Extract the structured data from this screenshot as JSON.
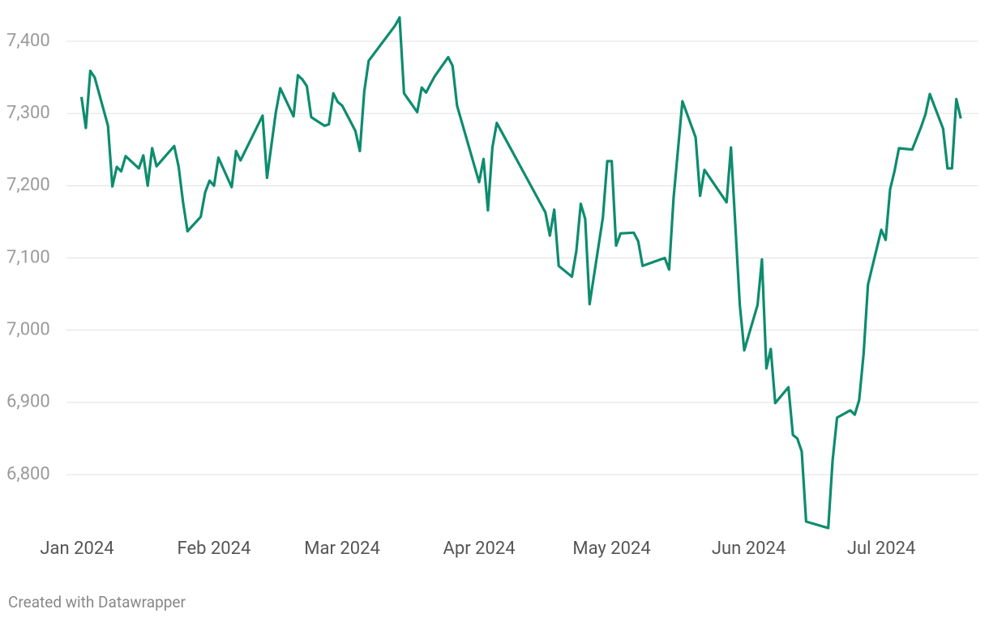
{
  "chart_data": {
    "type": "line",
    "x": [
      1,
      2,
      3,
      4,
      7,
      8,
      9,
      10,
      11,
      14,
      15,
      16,
      17,
      18,
      22,
      23,
      24,
      25,
      28,
      29,
      30,
      31,
      32,
      35,
      36,
      37,
      42,
      43,
      45,
      46,
      49,
      50,
      51,
      52,
      53,
      56,
      57,
      58,
      59,
      60,
      63,
      64,
      65,
      66,
      72,
      73,
      74,
      77,
      78,
      79,
      80,
      81,
      84,
      85,
      86,
      91,
      92,
      93,
      94,
      95,
      106,
      107,
      108,
      109,
      112,
      113,
      114,
      115,
      116,
      119,
      120,
      121,
      122,
      123,
      126,
      127,
      128,
      133,
      134,
      135,
      137,
      140,
      141,
      142,
      147,
      148,
      150,
      151,
      154,
      155,
      156,
      157,
      158,
      161,
      162,
      163,
      164,
      165,
      170,
      171,
      172,
      175,
      176,
      177,
      178,
      179,
      182,
      183,
      184,
      185,
      186,
      189,
      191,
      192,
      193,
      196,
      197,
      198,
      199,
      200
    ],
    "series": [
      {
        "color": "#0d8c6e",
        "values": [
          7323,
          7280,
          7359,
          7350,
          7283,
          7199,
          7226,
          7220,
          7241,
          7224,
          7242,
          7200,
          7252,
          7227,
          7255,
          7226,
          7177,
          7137,
          7157,
          7191,
          7207,
          7200,
          7239,
          7198,
          7248,
          7235,
          7297,
          7211,
          7302,
          7335,
          7296,
          7353,
          7347,
          7338,
          7295,
          7283,
          7285,
          7328,
          7316,
          7311,
          7276,
          7248,
          7330,
          7373,
          7422,
          7433,
          7328,
          7302,
          7336,
          7329,
          7341,
          7352,
          7378,
          7366,
          7311,
          7205,
          7237,
          7166,
          7253,
          7287,
          7163,
          7131,
          7167,
          7089,
          7074,
          7110,
          7175,
          7154,
          7036,
          7156,
          7234,
          7234,
          7117,
          7134,
          7135,
          7123,
          7089,
          7100,
          7084,
          7183,
          7317,
          7267,
          7186,
          7222,
          7177,
          7253,
          7035,
          6972,
          7035,
          7098,
          6947,
          6974,
          6899,
          6921,
          6855,
          6850,
          6832,
          6735,
          6726,
          6820,
          6879,
          6889,
          6883,
          6903,
          6967,
          7063,
          7139,
          7125,
          7195,
          7220,
          7252,
          7250,
          7281,
          7299,
          7327,
          7279,
          7224,
          7224,
          7320,
          7293
        ]
      }
    ],
    "xlim": [
      0,
      204
    ],
    "xticks": [
      {
        "value": 0,
        "label": "Jan 2024"
      },
      {
        "value": 31,
        "label": "Feb 2024"
      },
      {
        "value": 60,
        "label": "Mar 2024"
      },
      {
        "value": 91,
        "label": "Apr 2024"
      },
      {
        "value": 121,
        "label": "May 2024"
      },
      {
        "value": 152,
        "label": "Jun 2024"
      },
      {
        "value": 182,
        "label": "Jul 2024"
      }
    ],
    "ylim": [
      6700,
      7450
    ],
    "yticks": [
      {
        "value": 6800,
        "label": "6,800"
      },
      {
        "value": 6900,
        "label": "6,900"
      },
      {
        "value": 7000,
        "label": "7,000"
      },
      {
        "value": 7100,
        "label": "7,100"
      },
      {
        "value": 7200,
        "label": "7,200"
      },
      {
        "value": 7300,
        "label": "7,300"
      },
      {
        "value": 7400,
        "label": "7,400"
      }
    ],
    "grid": true,
    "footer": "Created with Datawrapper"
  }
}
